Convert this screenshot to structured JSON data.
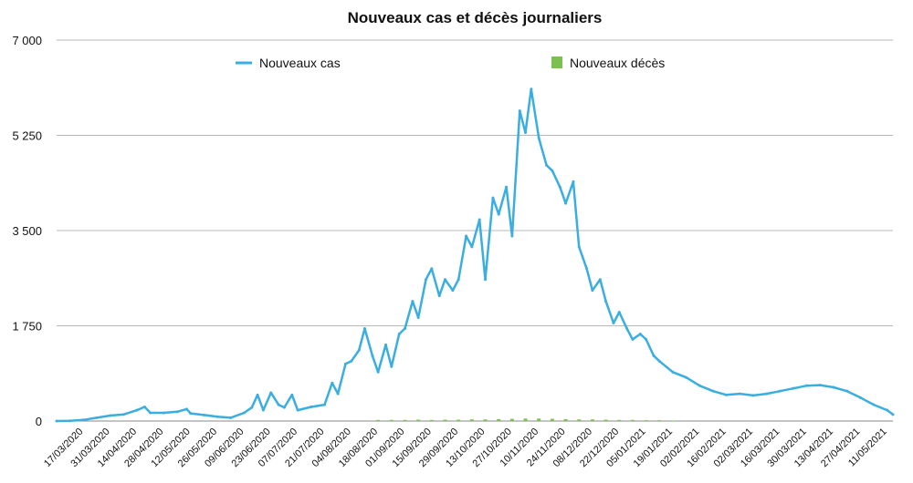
{
  "chart_data": {
    "type": "line",
    "title": "Nouveaux cas et décès journaliers",
    "ylim": [
      0,
      7000
    ],
    "yticks": [
      0,
      1750,
      3500,
      5250,
      7000
    ],
    "ytick_labels": [
      "0",
      "1 750",
      "3 500",
      "5 250",
      "7 000"
    ],
    "xlim": [
      "2020-03-03",
      "2021-05-14"
    ],
    "xtick_labels": [
      "17/03/2020",
      "31/03/2020",
      "14/04/2020",
      "28/04/2020",
      "12/05/2020",
      "26/05/2020",
      "09/06/2020",
      "23/06/2020",
      "07/07/2020",
      "21/07/2020",
      "04/08/2020",
      "18/08/2020",
      "01/09/2020",
      "15/09/2020",
      "29/09/2020",
      "13/10/2020",
      "27/10/2020",
      "10/11/2020",
      "24/11/2020",
      "08/12/2020",
      "22/12/2020",
      "05/01/2021",
      "19/01/2021",
      "02/02/2021",
      "16/02/2021",
      "02/03/2021",
      "16/03/2021",
      "30/03/2021",
      "13/04/2021",
      "27/04/2021",
      "11/05/2021"
    ],
    "grid": true,
    "legend_position": "top",
    "series": [
      {
        "name": "Nouveaux cas",
        "style": "line",
        "color": "#3aaee0",
        "points": [
          [
            "2020-03-03",
            0
          ],
          [
            "2020-03-10",
            5
          ],
          [
            "2020-03-17",
            20
          ],
          [
            "2020-03-24",
            60
          ],
          [
            "2020-03-31",
            100
          ],
          [
            "2020-04-07",
            120
          ],
          [
            "2020-04-14",
            200
          ],
          [
            "2020-04-18",
            260
          ],
          [
            "2020-04-21",
            150
          ],
          [
            "2020-04-28",
            150
          ],
          [
            "2020-05-05",
            170
          ],
          [
            "2020-05-10",
            220
          ],
          [
            "2020-05-12",
            140
          ],
          [
            "2020-05-19",
            110
          ],
          [
            "2020-05-26",
            80
          ],
          [
            "2020-06-02",
            60
          ],
          [
            "2020-06-09",
            150
          ],
          [
            "2020-06-13",
            250
          ],
          [
            "2020-06-16",
            480
          ],
          [
            "2020-06-19",
            200
          ],
          [
            "2020-06-23",
            520
          ],
          [
            "2020-06-27",
            300
          ],
          [
            "2020-06-30",
            250
          ],
          [
            "2020-07-04",
            480
          ],
          [
            "2020-07-07",
            200
          ],
          [
            "2020-07-14",
            260
          ],
          [
            "2020-07-21",
            300
          ],
          [
            "2020-07-25",
            700
          ],
          [
            "2020-07-28",
            500
          ],
          [
            "2020-08-01",
            1050
          ],
          [
            "2020-08-04",
            1100
          ],
          [
            "2020-08-08",
            1300
          ],
          [
            "2020-08-11",
            1700
          ],
          [
            "2020-08-15",
            1200
          ],
          [
            "2020-08-18",
            900
          ],
          [
            "2020-08-22",
            1400
          ],
          [
            "2020-08-25",
            1000
          ],
          [
            "2020-08-29",
            1600
          ],
          [
            "2020-09-01",
            1700
          ],
          [
            "2020-09-05",
            2200
          ],
          [
            "2020-09-08",
            1900
          ],
          [
            "2020-09-12",
            2600
          ],
          [
            "2020-09-15",
            2800
          ],
          [
            "2020-09-19",
            2300
          ],
          [
            "2020-09-22",
            2600
          ],
          [
            "2020-09-26",
            2400
          ],
          [
            "2020-09-29",
            2600
          ],
          [
            "2020-10-03",
            3400
          ],
          [
            "2020-10-06",
            3200
          ],
          [
            "2020-10-10",
            3700
          ],
          [
            "2020-10-13",
            2600
          ],
          [
            "2020-10-17",
            4100
          ],
          [
            "2020-10-20",
            3800
          ],
          [
            "2020-10-24",
            4300
          ],
          [
            "2020-10-27",
            3400
          ],
          [
            "2020-10-31",
            5700
          ],
          [
            "2020-11-03",
            5300
          ],
          [
            "2020-11-06",
            6100
          ],
          [
            "2020-11-10",
            5200
          ],
          [
            "2020-11-14",
            4700
          ],
          [
            "2020-11-17",
            4600
          ],
          [
            "2020-11-21",
            4300
          ],
          [
            "2020-11-24",
            4000
          ],
          [
            "2020-11-28",
            4400
          ],
          [
            "2020-12-01",
            3200
          ],
          [
            "2020-12-05",
            2800
          ],
          [
            "2020-12-08",
            2400
          ],
          [
            "2020-12-12",
            2600
          ],
          [
            "2020-12-15",
            2200
          ],
          [
            "2020-12-19",
            1800
          ],
          [
            "2020-12-22",
            2000
          ],
          [
            "2020-12-26",
            1700
          ],
          [
            "2020-12-29",
            1500
          ],
          [
            "2021-01-02",
            1600
          ],
          [
            "2021-01-05",
            1500
          ],
          [
            "2021-01-09",
            1200
          ],
          [
            "2021-01-12",
            1100
          ],
          [
            "2021-01-19",
            900
          ],
          [
            "2021-01-26",
            800
          ],
          [
            "2021-02-02",
            650
          ],
          [
            "2021-02-09",
            550
          ],
          [
            "2021-02-16",
            480
          ],
          [
            "2021-02-23",
            500
          ],
          [
            "2021-03-02",
            470
          ],
          [
            "2021-03-09",
            500
          ],
          [
            "2021-03-16",
            550
          ],
          [
            "2021-03-23",
            600
          ],
          [
            "2021-03-30",
            650
          ],
          [
            "2021-04-06",
            660
          ],
          [
            "2021-04-13",
            620
          ],
          [
            "2021-04-20",
            550
          ],
          [
            "2021-04-27",
            430
          ],
          [
            "2021-05-04",
            300
          ],
          [
            "2021-05-11",
            200
          ],
          [
            "2021-05-14",
            120
          ]
        ]
      },
      {
        "name": "Nouveaux décès",
        "style": "bar",
        "color": "#7cc04f",
        "points": [
          [
            "2020-08-18",
            20
          ],
          [
            "2020-08-25",
            20
          ],
          [
            "2020-09-01",
            20
          ],
          [
            "2020-09-08",
            25
          ],
          [
            "2020-09-15",
            20
          ],
          [
            "2020-09-22",
            25
          ],
          [
            "2020-09-29",
            25
          ],
          [
            "2020-10-06",
            30
          ],
          [
            "2020-10-13",
            30
          ],
          [
            "2020-10-20",
            35
          ],
          [
            "2020-10-27",
            40
          ],
          [
            "2020-11-03",
            45
          ],
          [
            "2020-11-10",
            45
          ],
          [
            "2020-11-17",
            40
          ],
          [
            "2020-11-24",
            35
          ],
          [
            "2020-12-01",
            30
          ],
          [
            "2020-12-08",
            30
          ],
          [
            "2020-12-15",
            25
          ],
          [
            "2020-12-22",
            20
          ],
          [
            "2020-12-29",
            20
          ],
          [
            "2021-01-05",
            15
          ],
          [
            "2021-01-12",
            15
          ],
          [
            "2021-01-19",
            10
          ]
        ]
      }
    ]
  }
}
